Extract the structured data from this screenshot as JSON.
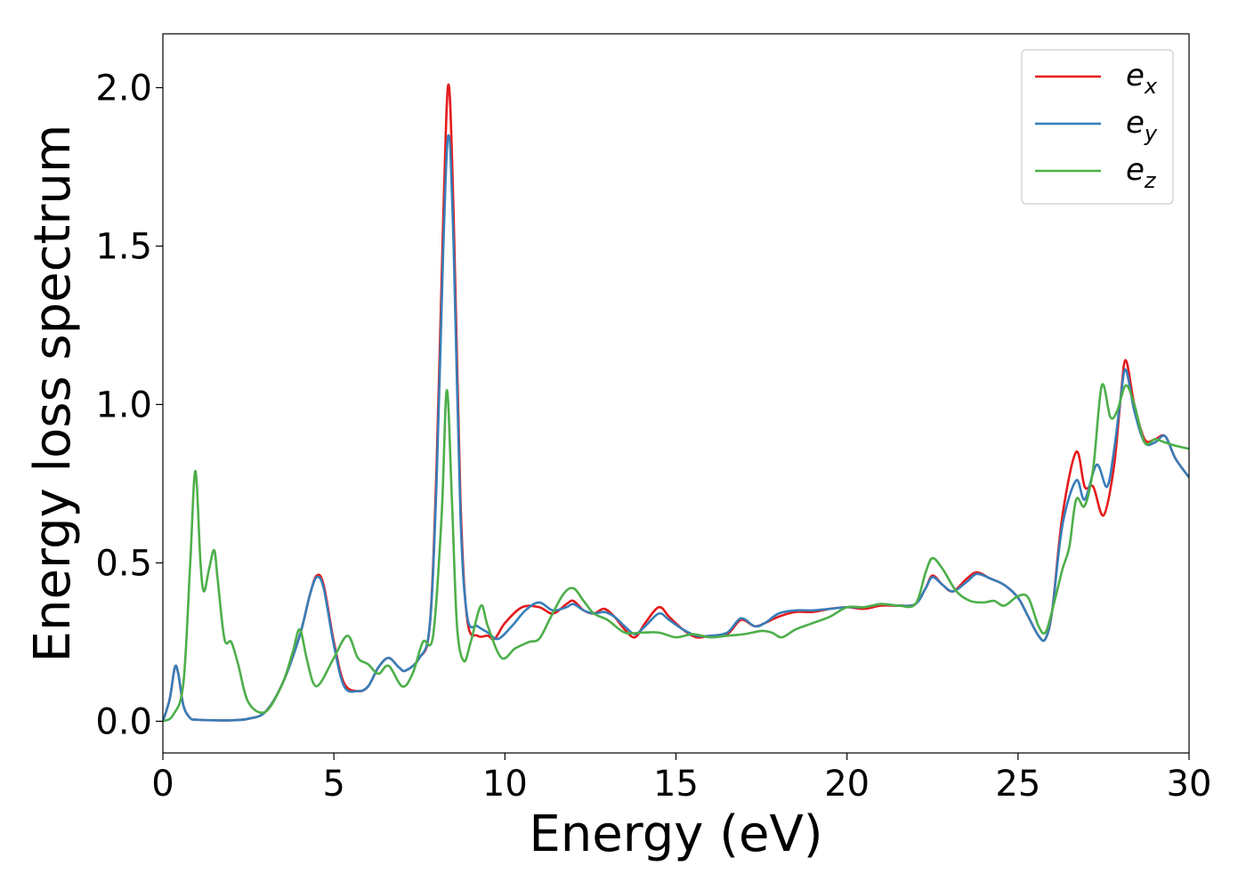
{
  "chart_data": {
    "type": "line",
    "title": "",
    "xlabel": "Energy (eV)",
    "ylabel": "Energy loss spectrum",
    "xlim": [
      0,
      30
    ],
    "ylim": [
      -0.1,
      2.17
    ],
    "xticks": [
      0,
      5,
      10,
      15,
      20,
      25,
      30
    ],
    "yticks": [
      0.0,
      0.5,
      1.0,
      1.5,
      2.0
    ],
    "xtick_labels": [
      "0",
      "5",
      "10",
      "15",
      "20",
      "25",
      "30"
    ],
    "ytick_labels": [
      "0.0",
      "0.5",
      "1.0",
      "1.5",
      "2.0"
    ],
    "grid": false,
    "legend": "top-right",
    "series": [
      {
        "name": "e",
        "subscript": "x",
        "color": "#e41a1c",
        "points": [
          [
            0,
            0.0
          ],
          [
            0.2,
            0.07
          ],
          [
            0.35,
            0.17
          ],
          [
            0.45,
            0.15
          ],
          [
            0.6,
            0.05
          ],
          [
            0.8,
            0.01
          ],
          [
            1.0,
            0.005
          ],
          [
            1.5,
            0.003
          ],
          [
            2.0,
            0.003
          ],
          [
            2.5,
            0.008
          ],
          [
            3.0,
            0.03
          ],
          [
            3.5,
            0.12
          ],
          [
            4.0,
            0.27
          ],
          [
            4.3,
            0.4
          ],
          [
            4.5,
            0.46
          ],
          [
            4.7,
            0.43
          ],
          [
            5.0,
            0.25
          ],
          [
            5.3,
            0.12
          ],
          [
            5.7,
            0.095
          ],
          [
            6.0,
            0.11
          ],
          [
            6.3,
            0.17
          ],
          [
            6.6,
            0.2
          ],
          [
            6.9,
            0.17
          ],
          [
            7.1,
            0.16
          ],
          [
            7.5,
            0.2
          ],
          [
            7.8,
            0.3
          ],
          [
            8.0,
            0.8
          ],
          [
            8.2,
            1.6
          ],
          [
            8.35,
            2.01
          ],
          [
            8.5,
            1.6
          ],
          [
            8.7,
            0.7
          ],
          [
            8.9,
            0.32
          ],
          [
            9.2,
            0.27
          ],
          [
            9.5,
            0.27
          ],
          [
            9.7,
            0.26
          ],
          [
            10.0,
            0.31
          ],
          [
            10.5,
            0.36
          ],
          [
            11.0,
            0.36
          ],
          [
            11.4,
            0.34
          ],
          [
            11.8,
            0.37
          ],
          [
            12.0,
            0.38
          ],
          [
            12.3,
            0.35
          ],
          [
            12.6,
            0.34
          ],
          [
            12.9,
            0.355
          ],
          [
            13.2,
            0.33
          ],
          [
            13.5,
            0.29
          ],
          [
            13.8,
            0.265
          ],
          [
            14.1,
            0.31
          ],
          [
            14.5,
            0.36
          ],
          [
            14.8,
            0.33
          ],
          [
            15.2,
            0.29
          ],
          [
            15.6,
            0.265
          ],
          [
            16.0,
            0.27
          ],
          [
            16.5,
            0.275
          ],
          [
            16.9,
            0.32
          ],
          [
            17.3,
            0.3
          ],
          [
            17.6,
            0.31
          ],
          [
            18.0,
            0.33
          ],
          [
            18.5,
            0.345
          ],
          [
            19.0,
            0.345
          ],
          [
            19.5,
            0.355
          ],
          [
            20.0,
            0.36
          ],
          [
            20.5,
            0.355
          ],
          [
            21.0,
            0.365
          ],
          [
            21.5,
            0.365
          ],
          [
            22.0,
            0.37
          ],
          [
            22.3,
            0.42
          ],
          [
            22.5,
            0.46
          ],
          [
            22.8,
            0.43
          ],
          [
            23.1,
            0.41
          ],
          [
            23.5,
            0.45
          ],
          [
            23.8,
            0.47
          ],
          [
            24.2,
            0.45
          ],
          [
            24.6,
            0.43
          ],
          [
            25.0,
            0.39
          ],
          [
            25.3,
            0.33
          ],
          [
            25.6,
            0.27
          ],
          [
            25.8,
            0.26
          ],
          [
            26.0,
            0.35
          ],
          [
            26.3,
            0.65
          ],
          [
            26.7,
            0.85
          ],
          [
            26.95,
            0.74
          ],
          [
            27.2,
            0.74
          ],
          [
            27.5,
            0.65
          ],
          [
            27.8,
            0.8
          ],
          [
            28.0,
            1.02
          ],
          [
            28.15,
            1.14
          ],
          [
            28.4,
            1.0
          ],
          [
            28.7,
            0.89
          ],
          [
            29.0,
            0.89
          ],
          [
            29.3,
            0.9
          ],
          [
            29.6,
            0.83
          ],
          [
            30.0,
            0.77
          ]
        ]
      },
      {
        "name": "e",
        "subscript": "y",
        "color": "#377eb8",
        "points": [
          [
            0,
            0.0
          ],
          [
            0.2,
            0.07
          ],
          [
            0.35,
            0.17
          ],
          [
            0.45,
            0.15
          ],
          [
            0.6,
            0.05
          ],
          [
            0.8,
            0.01
          ],
          [
            1.0,
            0.005
          ],
          [
            1.5,
            0.003
          ],
          [
            2.0,
            0.003
          ],
          [
            2.5,
            0.008
          ],
          [
            3.0,
            0.03
          ],
          [
            3.5,
            0.12
          ],
          [
            4.0,
            0.27
          ],
          [
            4.3,
            0.4
          ],
          [
            4.5,
            0.455
          ],
          [
            4.7,
            0.42
          ],
          [
            5.0,
            0.24
          ],
          [
            5.3,
            0.11
          ],
          [
            5.7,
            0.095
          ],
          [
            6.0,
            0.11
          ],
          [
            6.3,
            0.17
          ],
          [
            6.6,
            0.2
          ],
          [
            6.9,
            0.17
          ],
          [
            7.1,
            0.16
          ],
          [
            7.5,
            0.2
          ],
          [
            7.8,
            0.3
          ],
          [
            8.0,
            0.75
          ],
          [
            8.2,
            1.5
          ],
          [
            8.35,
            1.85
          ],
          [
            8.5,
            1.5
          ],
          [
            8.7,
            0.65
          ],
          [
            8.9,
            0.33
          ],
          [
            9.2,
            0.3
          ],
          [
            9.5,
            0.28
          ],
          [
            9.8,
            0.26
          ],
          [
            10.2,
            0.3
          ],
          [
            10.6,
            0.35
          ],
          [
            11.0,
            0.375
          ],
          [
            11.4,
            0.35
          ],
          [
            11.8,
            0.36
          ],
          [
            12.0,
            0.37
          ],
          [
            12.3,
            0.35
          ],
          [
            12.6,
            0.34
          ],
          [
            12.9,
            0.345
          ],
          [
            13.2,
            0.33
          ],
          [
            13.5,
            0.3
          ],
          [
            13.8,
            0.275
          ],
          [
            14.1,
            0.3
          ],
          [
            14.5,
            0.34
          ],
          [
            14.8,
            0.32
          ],
          [
            15.2,
            0.29
          ],
          [
            15.6,
            0.27
          ],
          [
            16.0,
            0.27
          ],
          [
            16.5,
            0.28
          ],
          [
            16.9,
            0.325
          ],
          [
            17.3,
            0.3
          ],
          [
            17.6,
            0.31
          ],
          [
            18.0,
            0.34
          ],
          [
            18.5,
            0.35
          ],
          [
            19.0,
            0.35
          ],
          [
            19.5,
            0.355
          ],
          [
            20.0,
            0.36
          ],
          [
            20.5,
            0.36
          ],
          [
            21.0,
            0.37
          ],
          [
            21.5,
            0.365
          ],
          [
            22.0,
            0.37
          ],
          [
            22.3,
            0.42
          ],
          [
            22.5,
            0.455
          ],
          [
            22.8,
            0.43
          ],
          [
            23.1,
            0.41
          ],
          [
            23.5,
            0.44
          ],
          [
            23.8,
            0.465
          ],
          [
            24.2,
            0.45
          ],
          [
            24.6,
            0.43
          ],
          [
            25.0,
            0.39
          ],
          [
            25.3,
            0.33
          ],
          [
            25.6,
            0.27
          ],
          [
            25.8,
            0.26
          ],
          [
            26.0,
            0.35
          ],
          [
            26.3,
            0.62
          ],
          [
            26.7,
            0.76
          ],
          [
            26.95,
            0.7
          ],
          [
            27.3,
            0.81
          ],
          [
            27.6,
            0.74
          ],
          [
            27.8,
            0.85
          ],
          [
            28.0,
            1.02
          ],
          [
            28.15,
            1.11
          ],
          [
            28.4,
            0.98
          ],
          [
            28.7,
            0.88
          ],
          [
            29.0,
            0.88
          ],
          [
            29.3,
            0.9
          ],
          [
            29.6,
            0.83
          ],
          [
            30.0,
            0.77
          ]
        ]
      },
      {
        "name": "e",
        "subscript": "z",
        "color": "#4daf4a",
        "points": [
          [
            0,
            0.0
          ],
          [
            0.3,
            0.02
          ],
          [
            0.6,
            0.12
          ],
          [
            0.8,
            0.5
          ],
          [
            0.95,
            0.79
          ],
          [
            1.1,
            0.5
          ],
          [
            1.2,
            0.41
          ],
          [
            1.35,
            0.48
          ],
          [
            1.5,
            0.54
          ],
          [
            1.6,
            0.45
          ],
          [
            1.8,
            0.26
          ],
          [
            2.0,
            0.25
          ],
          [
            2.2,
            0.18
          ],
          [
            2.5,
            0.06
          ],
          [
            3.0,
            0.03
          ],
          [
            3.5,
            0.12
          ],
          [
            3.8,
            0.22
          ],
          [
            4.0,
            0.29
          ],
          [
            4.2,
            0.2
          ],
          [
            4.4,
            0.12
          ],
          [
            4.6,
            0.12
          ],
          [
            5.0,
            0.2
          ],
          [
            5.4,
            0.27
          ],
          [
            5.7,
            0.2
          ],
          [
            6.0,
            0.18
          ],
          [
            6.3,
            0.15
          ],
          [
            6.6,
            0.175
          ],
          [
            7.0,
            0.11
          ],
          [
            7.3,
            0.15
          ],
          [
            7.6,
            0.25
          ],
          [
            7.9,
            0.27
          ],
          [
            8.15,
            0.65
          ],
          [
            8.3,
            1.045
          ],
          [
            8.45,
            0.7
          ],
          [
            8.6,
            0.3
          ],
          [
            8.8,
            0.19
          ],
          [
            9.0,
            0.25
          ],
          [
            9.3,
            0.365
          ],
          [
            9.5,
            0.3
          ],
          [
            9.9,
            0.2
          ],
          [
            10.3,
            0.23
          ],
          [
            10.7,
            0.25
          ],
          [
            11.0,
            0.26
          ],
          [
            11.3,
            0.32
          ],
          [
            11.7,
            0.4
          ],
          [
            12.0,
            0.42
          ],
          [
            12.3,
            0.38
          ],
          [
            12.6,
            0.34
          ],
          [
            13.0,
            0.32
          ],
          [
            13.5,
            0.28
          ],
          [
            14.0,
            0.28
          ],
          [
            14.5,
            0.28
          ],
          [
            15.0,
            0.265
          ],
          [
            15.5,
            0.275
          ],
          [
            16.0,
            0.265
          ],
          [
            16.5,
            0.27
          ],
          [
            17.0,
            0.275
          ],
          [
            17.5,
            0.285
          ],
          [
            17.8,
            0.28
          ],
          [
            18.1,
            0.265
          ],
          [
            18.5,
            0.29
          ],
          [
            19.0,
            0.31
          ],
          [
            19.5,
            0.33
          ],
          [
            20.0,
            0.36
          ],
          [
            20.5,
            0.36
          ],
          [
            21.0,
            0.37
          ],
          [
            21.5,
            0.365
          ],
          [
            22.0,
            0.37
          ],
          [
            22.3,
            0.47
          ],
          [
            22.5,
            0.515
          ],
          [
            22.8,
            0.48
          ],
          [
            23.2,
            0.41
          ],
          [
            23.6,
            0.38
          ],
          [
            24.0,
            0.375
          ],
          [
            24.3,
            0.38
          ],
          [
            24.6,
            0.365
          ],
          [
            25.0,
            0.395
          ],
          [
            25.3,
            0.39
          ],
          [
            25.6,
            0.3
          ],
          [
            25.8,
            0.28
          ],
          [
            26.0,
            0.35
          ],
          [
            26.3,
            0.48
          ],
          [
            26.5,
            0.55
          ],
          [
            26.7,
            0.7
          ],
          [
            26.95,
            0.68
          ],
          [
            27.2,
            0.8
          ],
          [
            27.45,
            1.06
          ],
          [
            27.7,
            0.96
          ],
          [
            27.9,
            0.98
          ],
          [
            28.15,
            1.06
          ],
          [
            28.4,
            1.0
          ],
          [
            28.7,
            0.88
          ],
          [
            29.0,
            0.89
          ],
          [
            29.3,
            0.88
          ],
          [
            29.6,
            0.87
          ],
          [
            30.0,
            0.86
          ]
        ]
      }
    ]
  }
}
